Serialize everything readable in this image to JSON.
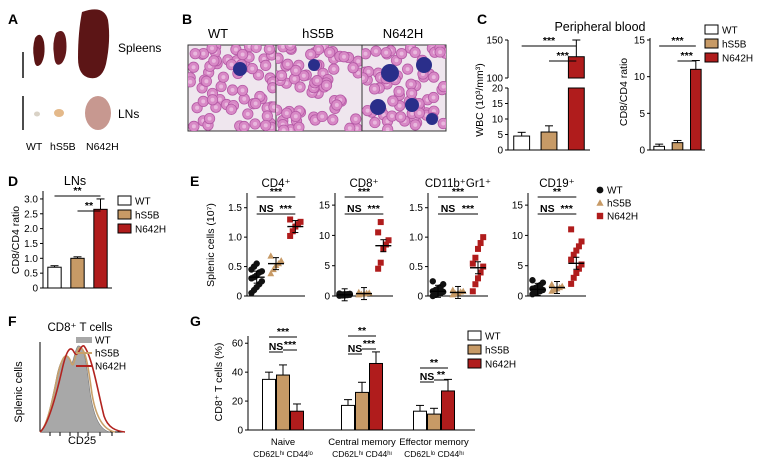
{
  "colors": {
    "WT": "#ffffff",
    "hS5B": "#c79a66",
    "N642H": "#b01c1c",
    "hist_fill": "#a8a8a8",
    "hist_hS5B": "#c8a06a",
    "hist_N642H": "#b2231f",
    "smear_bg": "#efe6ee"
  },
  "panels": {
    "A": {
      "letter": "A",
      "spleens": "Spleens",
      "lns": "LNs",
      "groups": [
        "WT",
        "hS5B",
        "N642H"
      ]
    },
    "B": {
      "letter": "B",
      "titles": [
        "WT",
        "hS5B",
        "N642H"
      ]
    },
    "C": {
      "letter": "C",
      "title": "Peripheral blood"
    },
    "D": {
      "letter": "D",
      "title": "LNs"
    },
    "E": {
      "letter": "E"
    },
    "F": {
      "letter": "F",
      "title": "CD8⁺ T cells",
      "ylabel": "Splenic cells",
      "xlabel": "CD25"
    },
    "G": {
      "letter": "G"
    }
  },
  "chart_data": [
    {
      "id": "C1",
      "type": "bar",
      "categories": [
        "WT",
        "hS5B",
        "N642H"
      ],
      "values": [
        4.5,
        5.8,
        128
      ],
      "errors": [
        1.2,
        2.0,
        22
      ],
      "ylabel": "WBC (10³/mm³)",
      "yticks": [
        0,
        5,
        10,
        15,
        20,
        100,
        150
      ],
      "axis_break": [
        20,
        85
      ],
      "significance": [
        "***",
        "***"
      ]
    },
    {
      "id": "C2",
      "type": "bar",
      "categories": [
        "WT",
        "hS5B",
        "N642H"
      ],
      "values": [
        0.5,
        1.0,
        11.0
      ],
      "errors": [
        0.3,
        0.3,
        1.2
      ],
      "ylabel": "CD8/CD4 ratio",
      "yticks": [
        0,
        5,
        10,
        15
      ],
      "ylim": [
        0,
        15
      ],
      "significance": [
        "***",
        "***"
      ],
      "legend": [
        "WT",
        "hS5B",
        "N642H"
      ]
    },
    {
      "id": "D",
      "type": "bar",
      "categories": [
        "WT",
        "hS5B",
        "N642H"
      ],
      "values": [
        0.7,
        1.0,
        2.65
      ],
      "errors": [
        0.05,
        0.05,
        0.35
      ],
      "ylabel": "CD8/CD4 ratio",
      "yticks": [
        0,
        0.5,
        1.0,
        1.5,
        2.0,
        2.5,
        3.0
      ],
      "ylim": [
        0,
        3.2
      ],
      "significance": [
        "**",
        "**"
      ],
      "legend": [
        "WT",
        "hS5B",
        "N642H"
      ]
    },
    {
      "id": "E1",
      "type": "scatter",
      "title": "CD4⁺",
      "ylabel": "Splenic cells (10⁷)",
      "yticks": [
        0,
        0.5,
        1.0,
        1.5
      ],
      "ylim": [
        0,
        1.75
      ],
      "groups": [
        {
          "name": "WT",
          "values": [
            0.05,
            0.1,
            0.15,
            0.2,
            0.25,
            0.3,
            0.32,
            0.35,
            0.4,
            0.42,
            0.45,
            0.5,
            0.55
          ],
          "mean": 0.32
        },
        {
          "name": "hS5B",
          "values": [
            0.38,
            0.45,
            0.52,
            0.55,
            0.6,
            0.68
          ],
          "mean": 0.55
        },
        {
          "name": "N642H",
          "values": [
            1.02,
            1.1,
            1.18,
            1.22,
            1.26,
            1.3
          ],
          "mean": 1.18
        }
      ],
      "significance": [
        "NS",
        "***",
        "***"
      ]
    },
    {
      "id": "E2",
      "type": "scatter",
      "title": "CD8⁺",
      "yticks": [
        0,
        5,
        10,
        15
      ],
      "ylim": [
        0,
        17
      ],
      "groups": [
        {
          "name": "WT",
          "values": [
            0.05,
            0.1,
            0.1,
            0.15,
            0.2,
            0.2,
            0.25,
            0.3,
            0.3,
            0.35,
            0.4
          ],
          "mean": 0.2
        },
        {
          "name": "hS5B",
          "values": [
            0.2,
            0.3,
            0.35,
            0.45,
            0.5,
            0.6
          ],
          "mean": 0.4
        },
        {
          "name": "N642H",
          "values": [
            4.5,
            5.5,
            7.8,
            8.5,
            9.2,
            10.5,
            12.2
          ],
          "mean": 8.3
        }
      ],
      "significance": [
        "NS",
        "***",
        "***"
      ]
    },
    {
      "id": "E3",
      "type": "scatter",
      "title": "CD11b⁺Gr1⁺",
      "yticks": [
        0,
        0.5,
        1.0,
        1.5
      ],
      "ylim": [
        0,
        1.75
      ],
      "groups": [
        {
          "name": "WT",
          "values": [
            0.0,
            0.02,
            0.04,
            0.05,
            0.07,
            0.08,
            0.1,
            0.12,
            0.15,
            0.2,
            0.25
          ],
          "mean": 0.08
        },
        {
          "name": "hS5B",
          "values": [
            0.02,
            0.04,
            0.05,
            0.07,
            0.08,
            0.1
          ],
          "mean": 0.06
        },
        {
          "name": "N642H",
          "values": [
            0.08,
            0.2,
            0.3,
            0.4,
            0.5,
            0.55,
            0.65,
            0.8,
            0.9,
            1.0
          ],
          "mean": 0.48
        }
      ],
      "significance": [
        "NS",
        "***",
        "***"
      ]
    },
    {
      "id": "E4",
      "type": "scatter",
      "title": "CD19⁺",
      "yticks": [
        0,
        5,
        10,
        15
      ],
      "ylim": [
        0,
        17
      ],
      "groups": [
        {
          "name": "WT",
          "values": [
            0.3,
            0.5,
            0.7,
            0.8,
            1.0,
            1.2,
            1.3,
            1.5,
            1.8,
            2.2,
            2.6
          ],
          "mean": 1.1
        },
        {
          "name": "hS5B",
          "values": [
            0.8,
            1.0,
            1.2,
            1.4,
            1.6,
            1.9
          ],
          "mean": 1.4
        },
        {
          "name": "N642H",
          "values": [
            2.0,
            3.0,
            3.8,
            4.5,
            5.2,
            6.0,
            6.8,
            7.5,
            8.2,
            9.0,
            11.0
          ],
          "mean": 5.4
        }
      ],
      "significance": [
        "NS",
        "***",
        "**"
      ],
      "legend": [
        "WT",
        "hS5B",
        "N642H"
      ]
    },
    {
      "id": "F",
      "type": "area",
      "xlabel": "CD25",
      "ylabel": "Splenic cells",
      "series": [
        {
          "name": "WT",
          "style": "filled"
        },
        {
          "name": "hS5B",
          "style": "line"
        },
        {
          "name": "N642H",
          "style": "line"
        }
      ],
      "legend": [
        "WT",
        "hS5B",
        "N642H"
      ]
    },
    {
      "id": "G",
      "type": "bar",
      "ylabel": "CD8⁺ T cells (%)",
      "yticks": [
        0,
        20,
        40,
        60
      ],
      "ylim": [
        0,
        65
      ],
      "categories": [
        "Naive",
        "Central memory",
        "Effector memory"
      ],
      "sublabels": [
        "CD62Lʰᶦ CD44ˡᵒ",
        "CD62Lʰᶦ CD44ʰᶦ",
        "CD62Lˡᵒ CD44ʰᶦ"
      ],
      "series": [
        {
          "name": "WT",
          "values": [
            35,
            17,
            13
          ],
          "errors": [
            5,
            4,
            4
          ]
        },
        {
          "name": "hS5B",
          "values": [
            38,
            26,
            11
          ],
          "errors": [
            7,
            7,
            4
          ]
        },
        {
          "name": "N642H",
          "values": [
            13,
            46,
            27
          ],
          "errors": [
            5,
            8,
            8
          ]
        }
      ],
      "significance": [
        [
          "NS",
          "***",
          "***"
        ],
        [
          "NS",
          "**",
          "***"
        ],
        [
          "NS",
          "**",
          "**"
        ]
      ],
      "legend": [
        "WT",
        "hS5B",
        "N642H"
      ]
    }
  ]
}
